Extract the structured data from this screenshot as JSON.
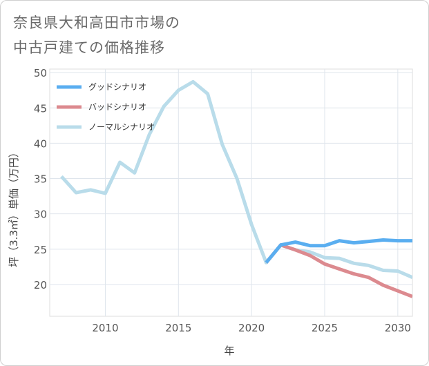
{
  "page": {
    "title_line1": "奈良県大和高田市市場の",
    "title_line2": "中古戸建ての価格推移"
  },
  "chart_data": {
    "type": "line",
    "title": "奈良県大和高田市市場の中古戸建ての価格推移",
    "xlabel": "年",
    "ylabel": "坪（3.3㎡）単価（万円）",
    "xlim": [
      2006.2,
      2031.0
    ],
    "ylim": [
      15.5,
      50.5
    ],
    "xticks": [
      2010,
      2015,
      2020,
      2025,
      2030
    ],
    "yticks": [
      20,
      25,
      30,
      35,
      40,
      45,
      50
    ],
    "grid": true,
    "legend_position": "top-left",
    "series": [
      {
        "name": "グッドシナリオ",
        "color": "#5aaef0",
        "x": [
          2021,
          2022,
          2023,
          2024,
          2025,
          2026,
          2027,
          2028,
          2029,
          2030,
          2031
        ],
        "values": [
          23.1,
          25.6,
          26.0,
          25.5,
          25.5,
          26.2,
          25.9,
          26.1,
          26.3,
          26.2,
          26.2
        ]
      },
      {
        "name": "バッドシナリオ",
        "color": "#dc8a8f",
        "x": [
          2021,
          2022,
          2023,
          2024,
          2025,
          2026,
          2027,
          2028,
          2029,
          2030,
          2031
        ],
        "values": [
          23.1,
          25.6,
          24.9,
          24.1,
          22.9,
          22.2,
          21.5,
          21.0,
          19.9,
          19.1,
          18.3
        ]
      },
      {
        "name": "ノーマルシナリオ",
        "color": "#b9dcea",
        "x": [
          2007,
          2008,
          2009,
          2010,
          2011,
          2012,
          2013,
          2014,
          2015,
          2016,
          2017,
          2018,
          2019,
          2020,
          2021,
          2022,
          2023,
          2024,
          2025,
          2026,
          2027,
          2028,
          2029,
          2030,
          2031
        ],
        "values": [
          35.3,
          33.0,
          33.4,
          32.9,
          37.3,
          35.8,
          41.2,
          45.2,
          47.5,
          48.7,
          47.0,
          39.8,
          35.0,
          28.5,
          23.1,
          25.6,
          24.9,
          24.6,
          23.8,
          23.7,
          23.0,
          22.7,
          22.0,
          21.9,
          21.0
        ]
      }
    ]
  }
}
